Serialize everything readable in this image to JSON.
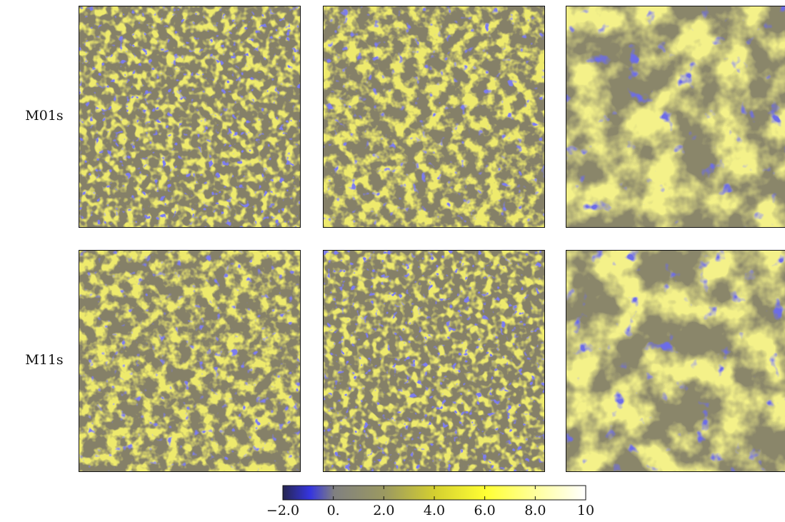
{
  "chart_data": {
    "type": "image-grid",
    "rows": [
      "M01s",
      "M11s"
    ],
    "colorbar": {
      "clim": [
        -2,
        10
      ],
      "ticks": [
        {
          "value": -2,
          "label": "−2.0"
        },
        {
          "value": 0,
          "label": "0."
        },
        {
          "value": 2,
          "label": "2.0"
        },
        {
          "value": 4,
          "label": "4.0"
        },
        {
          "value": 6,
          "label": "6.0"
        },
        {
          "value": 8,
          "label": "8.0"
        },
        10
      ]
    }
  }
}
